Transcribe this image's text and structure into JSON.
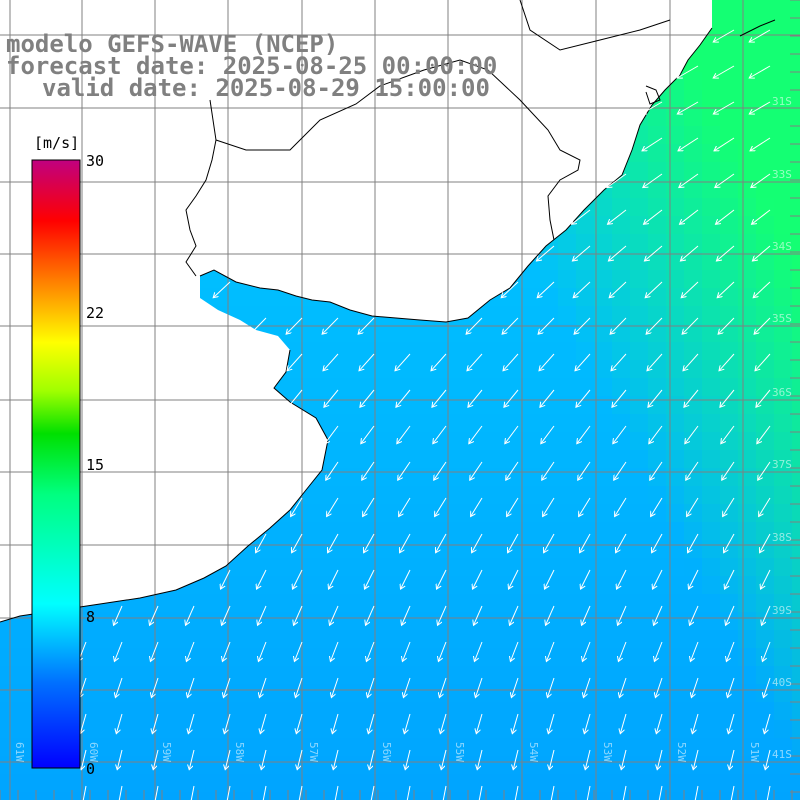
{
  "title": {
    "line1": "modelo GEFS-WAVE (NCEP)",
    "line2": "forecast date: 2025-08-25 00:00:00",
    "line3": "valid date: 2025-08-29 15:00:00"
  },
  "colorbar": {
    "unit": "[m/s]",
    "ticks": [
      "30",
      "22",
      "15",
      "8",
      "0"
    ],
    "range": [
      0,
      30
    ],
    "colors": [
      "#0000ff",
      "#00a0ff",
      "#00ffff",
      "#00ff00",
      "#ffff00",
      "#ff8000",
      "#ff0000",
      "#c00080"
    ]
  },
  "map": {
    "lat_labels": [
      "31S",
      "33S",
      "34S",
      "35S",
      "36S",
      "37S",
      "38S",
      "39S",
      "40S",
      "41S"
    ],
    "lon_labels": [
      "61W",
      "60W",
      "59W",
      "58W",
      "57W",
      "56W",
      "55W",
      "54W",
      "53W",
      "52W",
      "51W"
    ],
    "land_color": "#ffffff",
    "grid_color": "#808080",
    "arrow_color": "#ffffff"
  }
}
